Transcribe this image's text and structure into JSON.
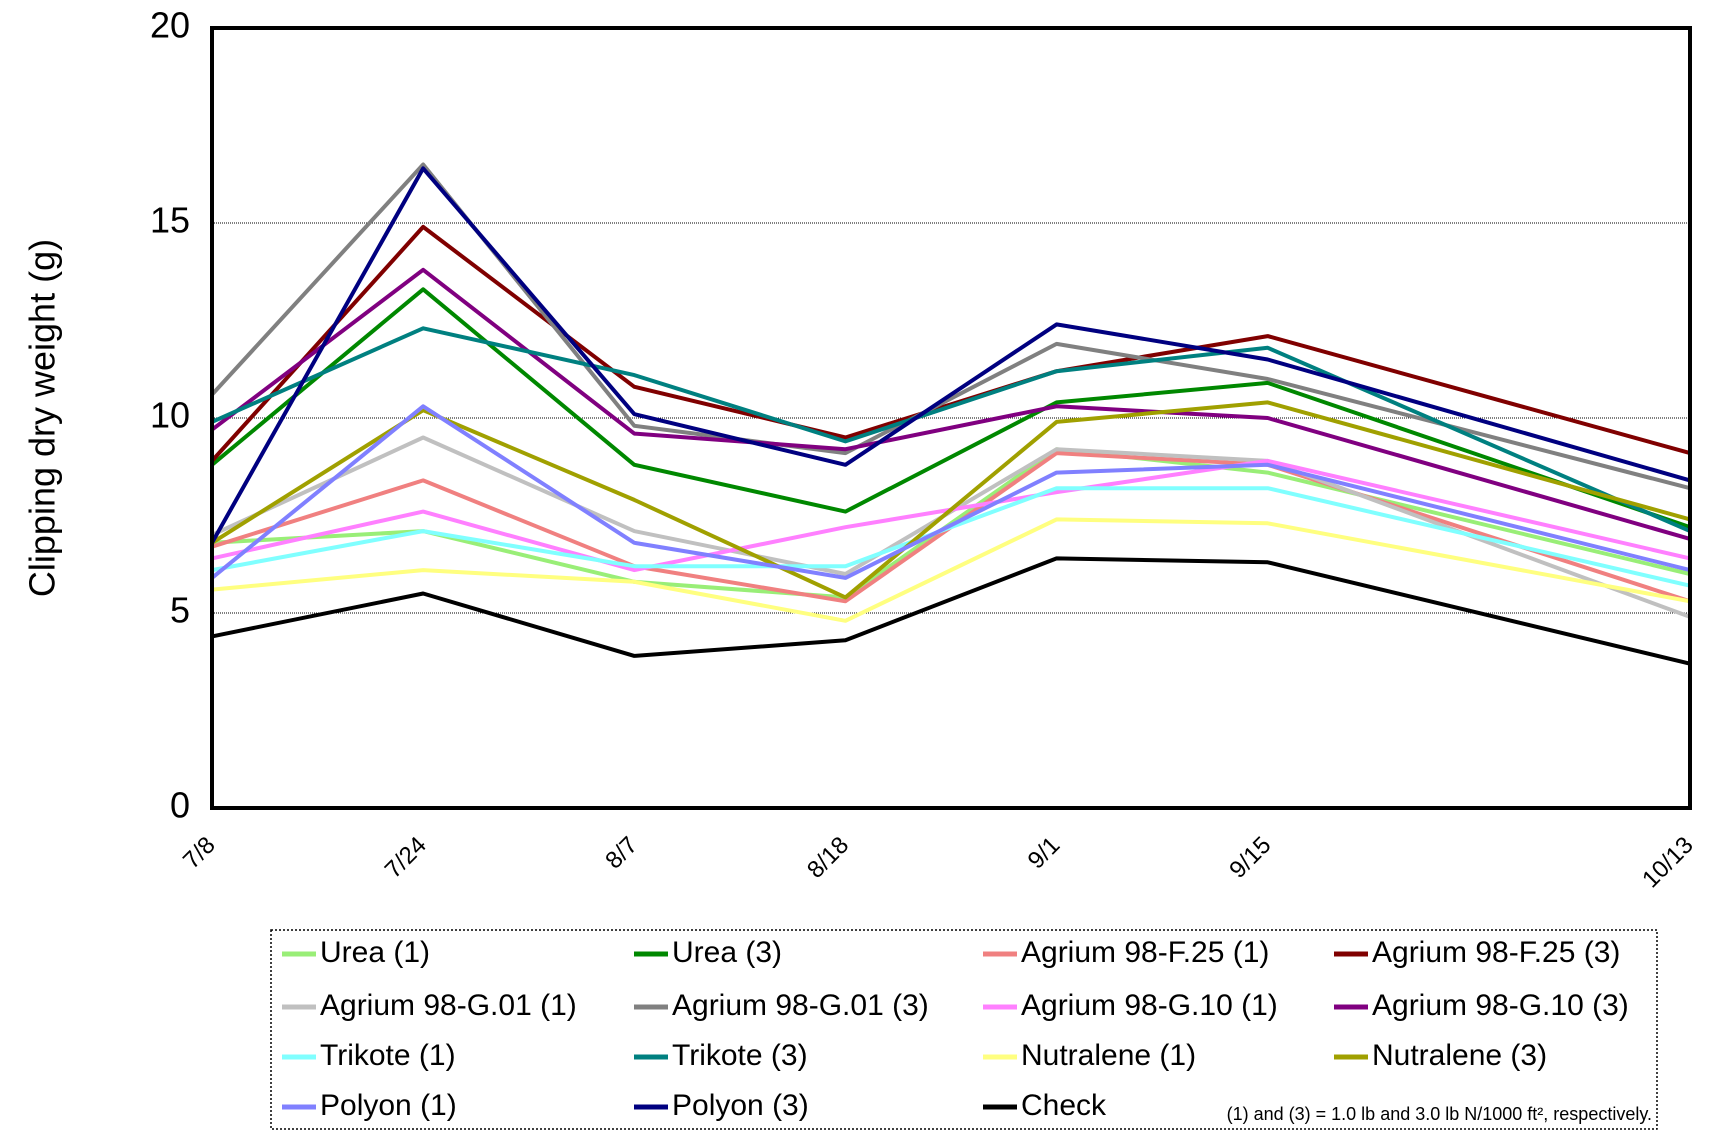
{
  "chart_data": {
    "type": "line",
    "y_label": "Clipping dry weight (g)",
    "categories": [
      "7/8",
      "7/24",
      "8/7",
      "8/18",
      "9/1",
      "9/15",
      null,
      "10/13"
    ],
    "ylim": [
      0,
      20
    ],
    "yticks": [
      0,
      5,
      10,
      15,
      20
    ],
    "grid": true,
    "note": "(1) and (3) = 1.0 lb and 3.0 lb N/1000 ft², respectively.",
    "series": [
      {
        "name": "Urea (1)",
        "color": "#99ee77",
        "values": [
          6.8,
          7.1,
          5.8,
          5.4,
          9.2,
          8.6,
          null,
          6.0
        ]
      },
      {
        "name": "Urea (3)",
        "color": "#008800",
        "values": [
          8.8,
          13.3,
          8.8,
          7.6,
          10.4,
          10.9,
          null,
          7.2
        ]
      },
      {
        "name": "Agrium 98-F.25 (1)",
        "color": "#f08080",
        "values": [
          6.7,
          8.4,
          6.2,
          5.3,
          9.1,
          8.8,
          null,
          5.3
        ]
      },
      {
        "name": "Agrium 98-F.25 (3)",
        "color": "#800000",
        "values": [
          8.9,
          14.9,
          10.8,
          9.5,
          11.2,
          12.1,
          null,
          9.1
        ]
      },
      {
        "name": "Agrium 98-G.01 (1)",
        "color": "#c0c0c0",
        "values": [
          7.0,
          9.5,
          7.1,
          6.0,
          9.2,
          8.9,
          null,
          4.9
        ]
      },
      {
        "name": "Agrium 98-G.01 (3)",
        "color": "#808080",
        "values": [
          10.6,
          16.5,
          9.8,
          9.1,
          11.9,
          11.0,
          null,
          8.2
        ]
      },
      {
        "name": "Agrium 98-G.10 (1)",
        "color": "#ff80ff",
        "values": [
          6.4,
          7.6,
          6.1,
          7.2,
          8.1,
          8.9,
          null,
          6.4
        ]
      },
      {
        "name": "Agrium 98-G.10 (3)",
        "color": "#800080",
        "values": [
          9.7,
          13.8,
          9.6,
          9.2,
          10.3,
          10.0,
          null,
          6.9
        ]
      },
      {
        "name": "Trikote (1)",
        "color": "#80ffff",
        "values": [
          6.1,
          7.1,
          6.2,
          6.2,
          8.2,
          8.2,
          null,
          5.7
        ]
      },
      {
        "name": "Trikote (3)",
        "color": "#008080",
        "values": [
          9.9,
          12.3,
          11.1,
          9.4,
          11.2,
          11.8,
          null,
          7.1
        ]
      },
      {
        "name": "Nutralene (1)",
        "color": "#ffff80",
        "values": [
          5.6,
          6.1,
          5.8,
          4.8,
          7.4,
          7.3,
          null,
          5.3
        ]
      },
      {
        "name": "Nutralene (3)",
        "color": "#a0a000",
        "values": [
          6.8,
          10.2,
          7.9,
          5.4,
          9.9,
          10.4,
          null,
          7.4
        ]
      },
      {
        "name": "Polyon (1)",
        "color": "#8080ff",
        "values": [
          5.9,
          10.3,
          6.8,
          5.9,
          8.6,
          8.8,
          null,
          6.1
        ]
      },
      {
        "name": "Polyon (3)",
        "color": "#000080",
        "values": [
          6.8,
          16.4,
          10.1,
          8.8,
          12.4,
          11.5,
          null,
          8.4
        ]
      },
      {
        "name": "Check",
        "color": "#000000",
        "values": [
          4.4,
          5.5,
          3.9,
          4.3,
          6.4,
          6.3,
          null,
          3.7
        ]
      }
    ]
  }
}
